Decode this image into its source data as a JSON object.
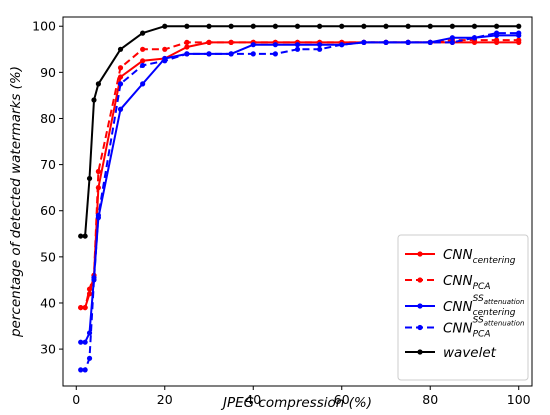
{
  "chart_data": {
    "type": "line",
    "title": "",
    "xlabel": "JPEG compression (%)",
    "ylabel": "percentage of detected watermarks (%)",
    "xlim": [
      -3,
      103
    ],
    "ylim": [
      22,
      102
    ],
    "xticks": [
      0,
      20,
      40,
      60,
      80,
      100
    ],
    "yticks": [
      30,
      40,
      50,
      60,
      70,
      80,
      90,
      100
    ],
    "legend_position": "bottom-right",
    "grid": false,
    "series": [
      {
        "name": "CNN_centering",
        "legend": {
          "base": "CNN",
          "sub": "centering",
          "sup": ""
        },
        "color": "#ff0000",
        "dashed": false,
        "x": [
          1,
          2,
          3,
          4,
          5,
          10,
          15,
          20,
          25,
          30,
          35,
          40,
          45,
          50,
          55,
          60,
          65,
          70,
          75,
          80,
          85,
          90,
          95,
          100
        ],
        "y": [
          39,
          39,
          42,
          46,
          65,
          89,
          92.5,
          93,
          95.5,
          96.5,
          96.5,
          96.5,
          96.5,
          96.5,
          96.5,
          96.5,
          96.5,
          96.5,
          96.5,
          96.5,
          96.5,
          96.5,
          96.5,
          96.5
        ]
      },
      {
        "name": "CNN_PCA",
        "legend": {
          "base": "CNN",
          "sub": "PCA",
          "sup": ""
        },
        "color": "#ff0000",
        "dashed": true,
        "x": [
          1,
          2,
          3,
          4,
          5,
          10,
          15,
          20,
          25,
          30,
          35,
          40,
          45,
          50,
          55,
          60,
          65,
          70,
          75,
          80,
          85,
          90,
          95,
          100
        ],
        "y": [
          39,
          39,
          43,
          46,
          68.5,
          91,
          95,
          95,
          96.5,
          96.5,
          96.5,
          96.5,
          96.5,
          96.5,
          96.5,
          96.5,
          96.5,
          96.5,
          96.5,
          96.5,
          97,
          97,
          97,
          97
        ]
      },
      {
        "name": "CNN_centering^SS_attenuation",
        "legend": {
          "base": "CNN",
          "sub": "centering",
          "sup": "SS_attenuation"
        },
        "color": "#0000ff",
        "dashed": false,
        "x": [
          1,
          2,
          3,
          4,
          5,
          10,
          15,
          20,
          25,
          30,
          35,
          40,
          45,
          50,
          55,
          60,
          65,
          70,
          75,
          80,
          85,
          90,
          95,
          100
        ],
        "y": [
          31.5,
          31.5,
          33.5,
          45.5,
          58.5,
          82,
          87.5,
          93,
          94,
          94,
          94,
          96,
          96,
          96,
          96,
          96,
          96.5,
          96.5,
          96.5,
          96.5,
          97.5,
          97.5,
          98,
          98
        ]
      },
      {
        "name": "CNN_PCA^SS_attenuation",
        "legend": {
          "base": "CNN",
          "sub": "PCA",
          "sup": "SS_attenuation"
        },
        "color": "#0000ff",
        "dashed": true,
        "x": [
          1,
          2,
          3,
          4,
          5,
          10,
          15,
          20,
          25,
          30,
          35,
          40,
          45,
          50,
          55,
          60,
          65,
          70,
          75,
          80,
          85,
          90,
          95,
          100
        ],
        "y": [
          25.5,
          25.5,
          28,
          45,
          59,
          87.5,
          91.5,
          92.5,
          94,
          94,
          94,
          94,
          94,
          95,
          95,
          96,
          96.5,
          96.5,
          96.5,
          96.5,
          96.5,
          97.5,
          98.5,
          98.5
        ]
      },
      {
        "name": "wavelet",
        "legend": {
          "base": "wavelet",
          "sub": "",
          "sup": ""
        },
        "color": "#000000",
        "dashed": false,
        "x": [
          1,
          2,
          3,
          4,
          5,
          10,
          15,
          20,
          25,
          30,
          35,
          40,
          45,
          50,
          55,
          60,
          65,
          70,
          75,
          80,
          85,
          90,
          95,
          100
        ],
        "y": [
          54.5,
          54.5,
          67,
          84,
          87.5,
          95,
          98.5,
          100,
          100,
          100,
          100,
          100,
          100,
          100,
          100,
          100,
          100,
          100,
          100,
          100,
          100,
          100,
          100,
          100
        ]
      }
    ]
  }
}
